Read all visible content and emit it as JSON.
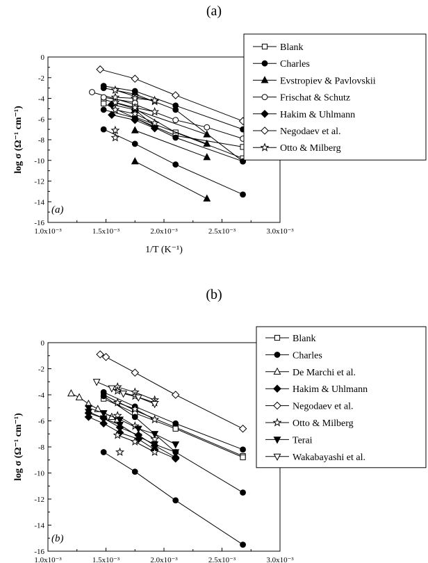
{
  "chart_data": [
    {
      "type": "scatter",
      "panel_label": "(a)",
      "inner_label": "(a)",
      "xlabel": "1/T (K⁻¹)",
      "ylabel": "log σ (Ω⁻¹ cm⁻¹)",
      "xlim": [
        0.001,
        0.003
      ],
      "ylim": [
        -16,
        0
      ],
      "x_ticks": [
        0.001,
        0.0015,
        0.002,
        0.0025,
        0.003
      ],
      "x_tick_labels": [
        "1.0x10⁻³",
        "1.5x10⁻³",
        "2.0x10⁻³",
        "2.5x10⁻³",
        "3.0x10⁻³"
      ],
      "y_ticks": [
        0,
        -2,
        -4,
        -6,
        -8,
        -10,
        -12,
        -14,
        -16
      ],
      "y_tick_labels": [
        "0",
        "-2",
        "-4",
        "-6",
        "-8",
        "-10",
        "-12",
        "-14",
        "-16"
      ],
      "grid": false,
      "legend_position": "right",
      "series": [
        {
          "name": "Blank",
          "marker": "square-open",
          "lines": [
            [
              [
                0.00148,
                -4.1
              ],
              [
                0.00175,
                -5.0
              ],
              [
                0.0021,
                -7.3
              ],
              [
                0.00268,
                -9.8
              ]
            ],
            [
              [
                0.00148,
                -4.5
              ],
              [
                0.00175,
                -5.9
              ],
              [
                0.0021,
                -7.6
              ],
              [
                0.00268,
                -8.7
              ]
            ]
          ]
        },
        {
          "name": "Charles",
          "marker": "circle-filled",
          "lines": [
            [
              [
                0.00148,
                -2.8
              ],
              [
                0.00175,
                -3.3
              ],
              [
                0.0021,
                -4.7
              ],
              [
                0.00268,
                -7.0
              ]
            ],
            [
              [
                0.00148,
                -3.0
              ],
              [
                0.00175,
                -3.6
              ],
              [
                0.0021,
                -5.1
              ],
              [
                0.00268,
                -10.1
              ]
            ],
            [
              [
                0.00148,
                -5.1
              ],
              [
                0.00175,
                -5.9
              ],
              [
                0.0021,
                -7.8
              ],
              [
                0.00268,
                -10.1
              ]
            ],
            [
              [
                0.00148,
                -7.0
              ],
              [
                0.00175,
                -8.4
              ],
              [
                0.0021,
                -10.4
              ],
              [
                0.00268,
                -13.3
              ]
            ]
          ]
        },
        {
          "name": "Evstropiev & Pavlovskii",
          "marker": "triangle-up-filled",
          "lines": [
            [
              [
                0.00175,
                -10.1
              ],
              [
                0.00237,
                -13.7
              ]
            ],
            [
              [
                0.00175,
                -7.1
              ],
              [
                0.00237,
                -9.7
              ]
            ],
            [
              [
                0.00175,
                -5.8
              ],
              [
                0.00237,
                -8.4
              ]
            ],
            [
              [
                0.00175,
                -5.1
              ],
              [
                0.00237,
                -7.5
              ]
            ]
          ]
        },
        {
          "name": "Frischat & Schutz",
          "marker": "circle-open",
          "lines": [
            [
              [
                0.00138,
                -3.4
              ],
              [
                0.00175,
                -4.6
              ],
              [
                0.0021,
                -6.1
              ],
              [
                0.00237,
                -6.8
              ],
              [
                0.00268,
                -7.9
              ]
            ],
            [
              [
                0.00148,
                -3.9
              ],
              [
                0.00175,
                -4.4
              ]
            ]
          ]
        },
        {
          "name": "Hakim & Uhlmann",
          "marker": "diamond-filled",
          "lines": [
            [
              [
                0.00155,
                -4.6
              ],
              [
                0.00175,
                -5.1
              ],
              [
                0.00192,
                -6.7
              ]
            ],
            [
              [
                0.00155,
                -5.6
              ],
              [
                0.00175,
                -6.1
              ],
              [
                0.00192,
                -6.9
              ]
            ]
          ]
        },
        {
          "name": "Negodaev et al.",
          "marker": "diamond-open",
          "lines": [
            [
              [
                0.00145,
                -1.2
              ],
              [
                0.00175,
                -2.1
              ],
              [
                0.0021,
                -3.7
              ],
              [
                0.00268,
                -6.2
              ]
            ]
          ]
        },
        {
          "name": "Otto & Milberg",
          "marker": "star-open",
          "lines": [
            [
              [
                0.00158,
                -3.2
              ],
              [
                0.00175,
                -3.8
              ],
              [
                0.00192,
                -4.3
              ]
            ],
            [
              [
                0.00158,
                -3.9
              ],
              [
                0.00175,
                -4.0
              ],
              [
                0.00192,
                -4.2
              ]
            ],
            [
              [
                0.00158,
                -4.4
              ],
              [
                0.00175,
                -4.9
              ],
              [
                0.00192,
                -5.3
              ]
            ],
            [
              [
                0.00158,
                -5.1
              ],
              [
                0.00175,
                -5.5
              ],
              [
                0.00192,
                -6.4
              ]
            ],
            [
              [
                0.00158,
                -7.1
              ],
              [
                0.00158,
                -7.8
              ]
            ]
          ]
        }
      ]
    },
    {
      "type": "scatter",
      "panel_label": "(b)",
      "inner_label": "(b)",
      "xlabel": "1/T (K⁻¹)",
      "ylabel": "log σ (Ω⁻¹ cm⁻¹)",
      "xlim": [
        0.001,
        0.003
      ],
      "ylim": [
        -16,
        0
      ],
      "x_ticks": [
        0.001,
        0.0015,
        0.002,
        0.0025,
        0.003
      ],
      "x_tick_labels": [
        "1.0x10⁻³",
        "1.5x10⁻³",
        "2.0x10⁻³",
        "2.5x10⁻³",
        "3.0x10⁻³"
      ],
      "y_ticks": [
        0,
        -2,
        -4,
        -6,
        -8,
        -10,
        -12,
        -14,
        -16
      ],
      "y_tick_labels": [
        "0",
        "-2",
        "-4",
        "-6",
        "-8",
        "-10",
        "-12",
        "-14",
        "-16"
      ],
      "grid": false,
      "legend_position": "right",
      "series": [
        {
          "name": "Blank",
          "marker": "square-open",
          "lines": [
            [
              [
                0.00148,
                -4.0
              ],
              [
                0.00175,
                -5.2
              ],
              [
                0.0021,
                -6.5
              ],
              [
                0.00268,
                -8.7
              ]
            ],
            [
              [
                0.00148,
                -4.3
              ],
              [
                0.00175,
                -5.4
              ],
              [
                0.0021,
                -6.6
              ],
              [
                0.00268,
                -8.8
              ]
            ]
          ]
        },
        {
          "name": "Charles",
          "marker": "circle-filled",
          "lines": [
            [
              [
                0.00148,
                -3.8
              ],
              [
                0.00175,
                -4.9
              ],
              [
                0.0021,
                -6.2
              ],
              [
                0.00268,
                -8.2
              ]
            ],
            [
              [
                0.00148,
                -4.1
              ],
              [
                0.00175,
                -5.7
              ],
              [
                0.0021,
                -8.4
              ],
              [
                0.00268,
                -11.5
              ]
            ],
            [
              [
                0.00148,
                -8.4
              ],
              [
                0.00175,
                -9.9
              ],
              [
                0.0021,
                -12.1
              ],
              [
                0.00268,
                -15.5
              ]
            ]
          ]
        },
        {
          "name": "De Marchi et al.",
          "marker": "triangle-up-open",
          "lines": [
            [
              [
                0.0012,
                -3.9
              ],
              [
                0.00127,
                -4.2
              ],
              [
                0.00135,
                -4.7
              ],
              [
                0.00143,
                -5.1
              ],
              [
                0.00155,
                -5.7
              ],
              [
                0.0016,
                -5.9
              ]
            ]
          ]
        },
        {
          "name": "Hakim & Uhlmann",
          "marker": "diamond-filled",
          "lines": [
            [
              [
                0.00135,
                -5.4
              ],
              [
                0.00148,
                -5.8
              ],
              [
                0.00162,
                -6.5
              ],
              [
                0.00178,
                -7.1
              ],
              [
                0.00192,
                -7.9
              ],
              [
                0.0021,
                -8.8
              ]
            ],
            [
              [
                0.00135,
                -5.7
              ],
              [
                0.00148,
                -6.2
              ],
              [
                0.00162,
                -6.9
              ],
              [
                0.00178,
                -7.4
              ],
              [
                0.00192,
                -8.2
              ],
              [
                0.0021,
                -8.9
              ]
            ]
          ]
        },
        {
          "name": "Negodaev et al.",
          "marker": "diamond-open",
          "lines": [
            [
              [
                0.00145,
                -0.9
              ],
              [
                0.0015,
                -1.1
              ],
              [
                0.00175,
                -2.3
              ],
              [
                0.0021,
                -4.0
              ],
              [
                0.00268,
                -6.6
              ]
            ]
          ]
        },
        {
          "name": "Otto & Milberg",
          "marker": "star-open",
          "lines": [
            [
              [
                0.0016,
                -3.4
              ],
              [
                0.00175,
                -3.8
              ],
              [
                0.00192,
                -4.4
              ]
            ],
            [
              [
                0.0016,
                -3.7
              ],
              [
                0.00175,
                -4.1
              ],
              [
                0.00192,
                -4.6
              ]
            ],
            [
              [
                0.0016,
                -4.6
              ],
              [
                0.00175,
                -5.1
              ],
              [
                0.00192,
                -5.9
              ]
            ],
            [
              [
                0.0016,
                -5.6
              ],
              [
                0.00175,
                -6.4
              ],
              [
                0.00192,
                -7.4
              ]
            ],
            [
              [
                0.0016,
                -7.1
              ],
              [
                0.00175,
                -7.6
              ],
              [
                0.00192,
                -8.4
              ]
            ],
            [
              [
                0.00162,
                -8.4
              ]
            ]
          ]
        },
        {
          "name": "Terai",
          "marker": "triangle-down-filled",
          "lines": [
            [
              [
                0.00135,
                -5.0
              ],
              [
                0.00148,
                -5.4
              ],
              [
                0.00162,
                -5.9
              ],
              [
                0.00178,
                -6.6
              ],
              [
                0.00192,
                -7.0
              ],
              [
                0.0021,
                -7.8
              ]
            ],
            [
              [
                0.00135,
                -5.3
              ],
              [
                0.00148,
                -5.8
              ],
              [
                0.00162,
                -6.3
              ],
              [
                0.00178,
                -7.2
              ],
              [
                0.00192,
                -7.8
              ],
              [
                0.0021,
                -8.4
              ]
            ]
          ]
        },
        {
          "name": "Wakabayashi et al.",
          "marker": "triangle-down-open",
          "lines": [
            [
              [
                0.00142,
                -3.0
              ],
              [
                0.00155,
                -3.5
              ],
              [
                0.00165,
                -3.9
              ],
              [
                0.00178,
                -4.2
              ],
              [
                0.00192,
                -4.7
              ]
            ]
          ]
        }
      ]
    }
  ]
}
